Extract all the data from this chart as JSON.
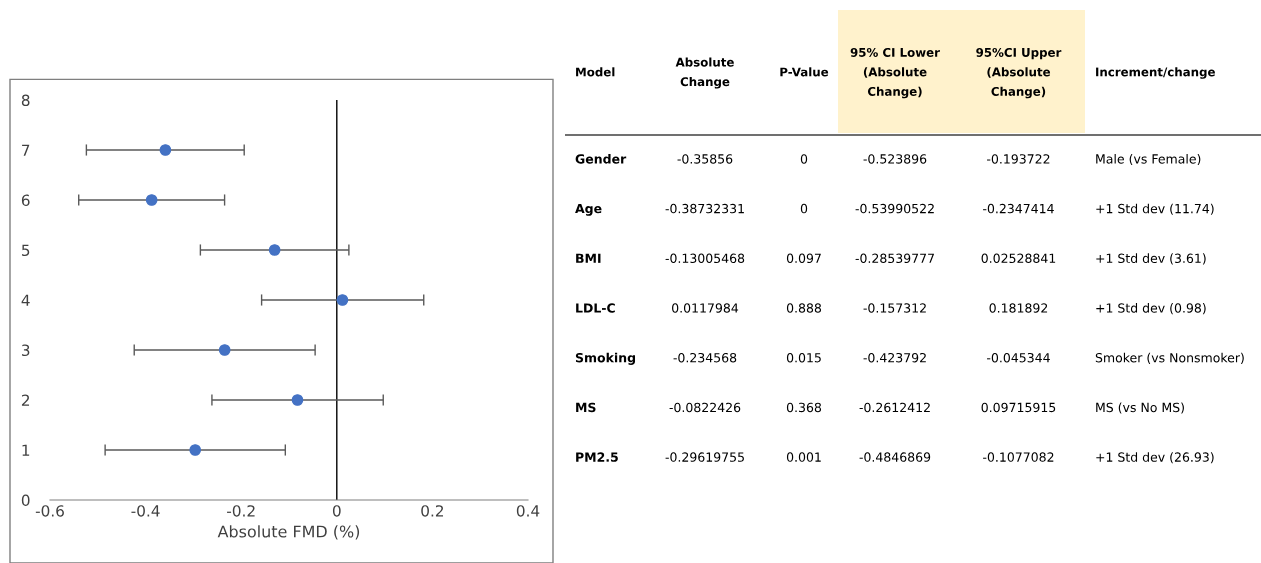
{
  "chart_data": [
    {
      "type": "scatter",
      "xlabel": "Absolute FMD (%)",
      "x": [
        -0.35856,
        -0.38732331,
        -0.13005468,
        0.0117984,
        -0.234568,
        -0.0822426,
        -0.29619755
      ],
      "values": [
        7,
        6,
        5,
        4,
        3,
        2,
        1
      ],
      "xerrors": [
        [
          -0.523896,
          -0.193722
        ],
        [
          -0.53990522,
          -0.2347414
        ],
        [
          -0.28539777,
          0.02528841
        ],
        [
          -0.157312,
          0.181892
        ],
        [
          -0.423792,
          -0.045344
        ],
        [
          -0.2612412,
          0.09715915
        ],
        [
          -0.4846869,
          -0.1077082
        ]
      ],
      "color": "#4472c4",
      "marker": "circle",
      "xlim": [
        -0.6,
        0.4
      ],
      "xticks": [
        -0.6,
        -0.4,
        -0.2,
        0,
        0.2,
        0.4
      ],
      "ylim": [
        0,
        8
      ],
      "yticks": [
        0,
        1,
        2,
        3,
        4,
        5,
        6,
        7,
        8
      ],
      "ref_lines": [
        {
          "axis": "x",
          "value": 0,
          "color": "#000000"
        }
      ],
      "grid": false,
      "legend": false
    },
    {
      "type": "other",
      "categories": [
        "Model",
        "Absolute\nChange",
        "P-Value",
        "95% CI Lower\n(Absolute\nChange)",
        "95%CI Upper\n(Absolute\nChange)",
        "Increment/change"
      ],
      "colors": [
        null,
        null,
        null,
        "#fff2cc",
        "#fff2cc",
        null
      ],
      "y_categories": [
        "Gender",
        "Age",
        "BMI",
        "LDL-C",
        "Smoking",
        "MS",
        "PM2.5"
      ],
      "cell_labels": [
        [
          "-0.35856",
          "0",
          "-0.523896",
          "-0.193722",
          "Male (vs Female)"
        ],
        [
          "-0.38732331",
          "0",
          "-0.53990522",
          "-0.2347414",
          "+1 Std dev (11.74)"
        ],
        [
          "-0.13005468",
          "0.097",
          "-0.28539777",
          "0.02528841",
          "+1 Std dev (3.61)"
        ],
        [
          "0.0117984",
          "0.888",
          "-0.157312",
          "0.181892",
          "+1 Std dev (0.98)"
        ],
        [
          "-0.234568",
          "0.015",
          "-0.423792",
          "-0.045344",
          "Smoker (vs Nonsmoker)"
        ],
        [
          "-0.0822426",
          "0.368",
          "-0.2612412",
          "0.09715915",
          "MS (vs No MS)"
        ],
        [
          "-0.29619755",
          "0.001",
          "-0.4846869",
          "-0.1077082",
          "+1 Std dev (26.93)"
        ]
      ]
    }
  ]
}
